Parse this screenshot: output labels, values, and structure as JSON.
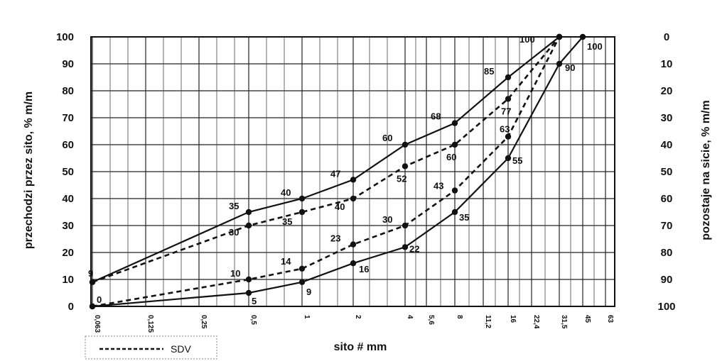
{
  "chart_data": {
    "type": "line",
    "xlabel": "sito # mm",
    "ylabel": "przechodzi przez sito, % m/m",
    "y2label": "pozostaje na sicie, % m/m",
    "ylim": [
      0,
      100
    ],
    "x_ticks": [
      "0,063",
      "0,125",
      "0,25",
      "0,5",
      "1",
      "2",
      "4",
      "5,6",
      "8",
      "11,2",
      "16",
      "22,4",
      "31,5",
      "45",
      "63"
    ],
    "y_ticks": [
      "0",
      "10",
      "20",
      "30",
      "40",
      "50",
      "60",
      "70",
      "80",
      "90",
      "100"
    ],
    "y2_ticks": [
      "100",
      "90",
      "80",
      "70",
      "60",
      "50",
      "40",
      "30",
      "20",
      "10",
      "0"
    ],
    "grid": true,
    "legend": {
      "position": "bottom-left",
      "label": "SDV"
    },
    "series": [
      {
        "style": "solid",
        "x": [
          "0,063",
          "0,5",
          "1",
          "2",
          "4",
          "8",
          "16",
          "31,5"
        ],
        "values": [
          9,
          35,
          40,
          47,
          60,
          68,
          85,
          100
        ],
        "labels": [
          "9",
          "35",
          "40",
          "47",
          "60",
          "68",
          "85",
          "100"
        ]
      },
      {
        "style": "solid",
        "x": [
          "0,063",
          "0,5",
          "1",
          "2",
          "4",
          "8",
          "16",
          "31,5",
          "45"
        ],
        "values": [
          0,
          5,
          9,
          16,
          22,
          35,
          55,
          90,
          100
        ],
        "labels": [
          "0",
          "5",
          "9",
          "16",
          "22",
          "35",
          "55",
          "90",
          "100"
        ]
      },
      {
        "name": "SDV",
        "style": "dashed",
        "x": [
          "0,063",
          "0,5",
          "1",
          "2",
          "4",
          "8",
          "16",
          "31,5"
        ],
        "values": [
          9,
          30,
          35,
          40,
          52,
          60,
          77,
          100
        ],
        "labels": [
          "30",
          "35",
          "40",
          "52",
          "60",
          "77"
        ]
      },
      {
        "name": "SDV",
        "style": "dashed",
        "x": [
          "0,063",
          "0,5",
          "1",
          "2",
          "4",
          "8",
          "16",
          "31,5"
        ],
        "values": [
          0,
          10,
          14,
          23,
          30,
          43,
          63,
          100
        ],
        "labels": [
          "10",
          "14",
          "23",
          "30",
          "43",
          "63"
        ]
      }
    ]
  }
}
